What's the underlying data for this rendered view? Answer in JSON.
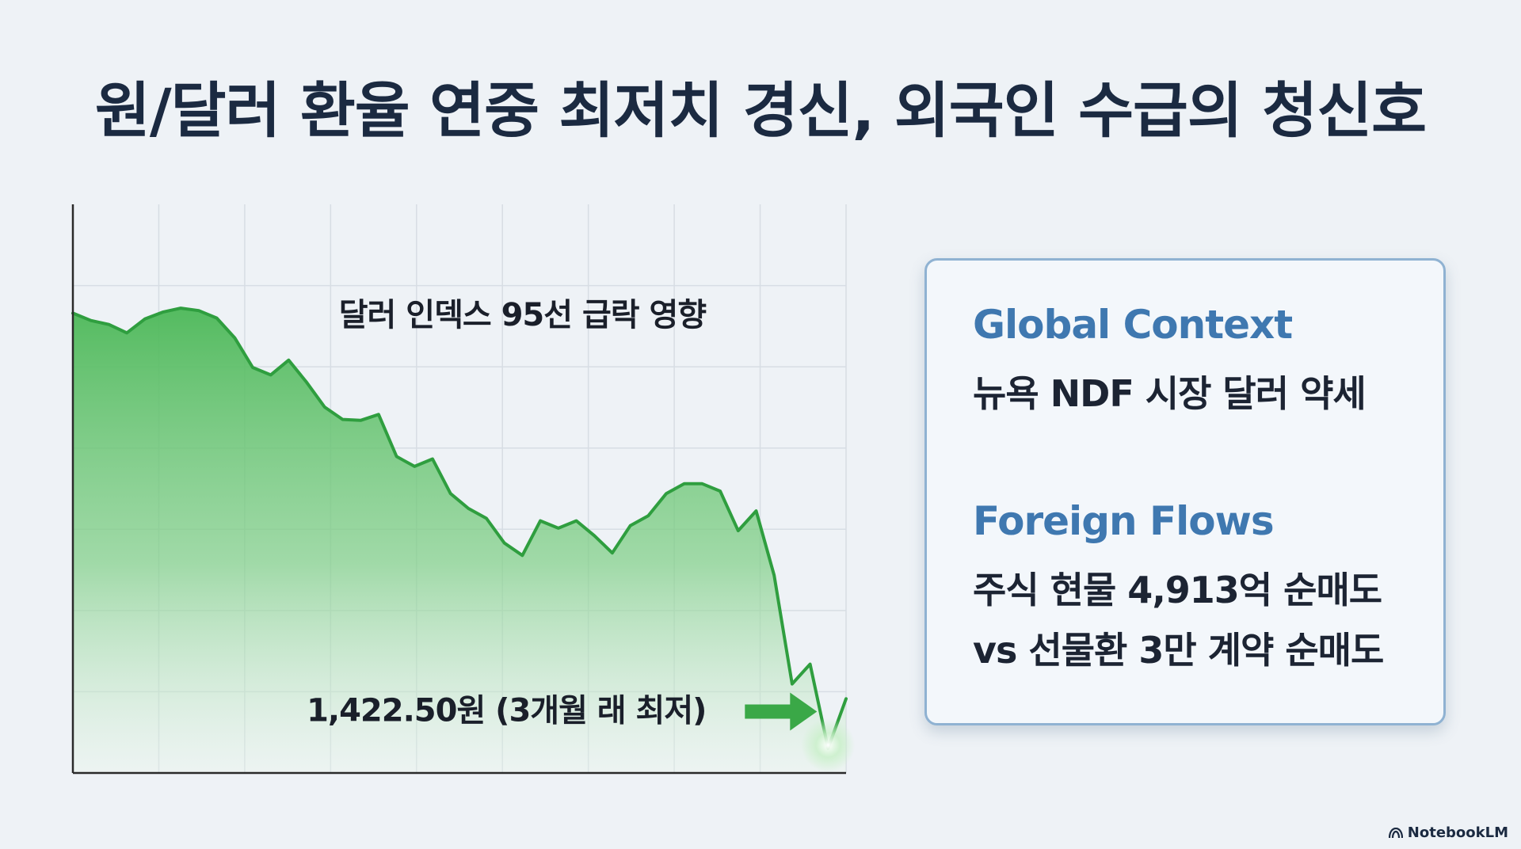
{
  "title": "원/달러 환율 연중 최저치 경신, 외국인 수급의 청신호",
  "chart_data": {
    "type": "area",
    "x": [
      0,
      1,
      2,
      3,
      4,
      5,
      6,
      7,
      8,
      9,
      10,
      11,
      12,
      13,
      14,
      15,
      16,
      17,
      18,
      19,
      20,
      21,
      22,
      23,
      24,
      25,
      26,
      27,
      28,
      29,
      30,
      31,
      32,
      33,
      34,
      35,
      36,
      37,
      38,
      39,
      40,
      41,
      42,
      43
    ],
    "y": [
      93.0,
      91.5,
      90.7,
      89.0,
      91.8,
      93.2,
      94.0,
      93.5,
      92.0,
      88.0,
      82.0,
      80.5,
      83.5,
      79.0,
      74.0,
      71.5,
      71.3,
      72.5,
      64.0,
      62.0,
      63.5,
      56.5,
      53.5,
      51.5,
      46.5,
      44.0,
      51.0,
      49.5,
      51.0,
      48.0,
      44.5,
      50.0,
      52.0,
      56.5,
      58.5,
      58.5,
      57.0,
      49.0,
      53.0,
      40.0,
      18.0,
      22.0,
      5.0,
      15.0
    ],
    "ylim": [
      0,
      115
    ],
    "xlim": [
      0,
      43
    ],
    "grid": true,
    "annotations": [
      {
        "text": "달러 인덱스 95선 급락 영향",
        "x": 25.0,
        "y": 90.5
      },
      {
        "text": "1,422.50원 (3개월 래 최저)",
        "x": 13.0,
        "y": 10.5
      }
    ],
    "colors": {
      "line": "#2f9e3f",
      "fill": "#4cb858",
      "arrow": "#3aa847"
    }
  },
  "card": {
    "sections": [
      {
        "heading": "Global Context",
        "lines": [
          "뉴욕 NDF 시장 달러 약세"
        ]
      },
      {
        "heading": "Foreign Flows",
        "lines": [
          "주식 현물 4,913억 순매도",
          "vs 선물환 3만 계약 순매도"
        ]
      }
    ]
  },
  "brand": {
    "name": "NotebookLM",
    "icon": "notebooklm-logo-icon"
  }
}
